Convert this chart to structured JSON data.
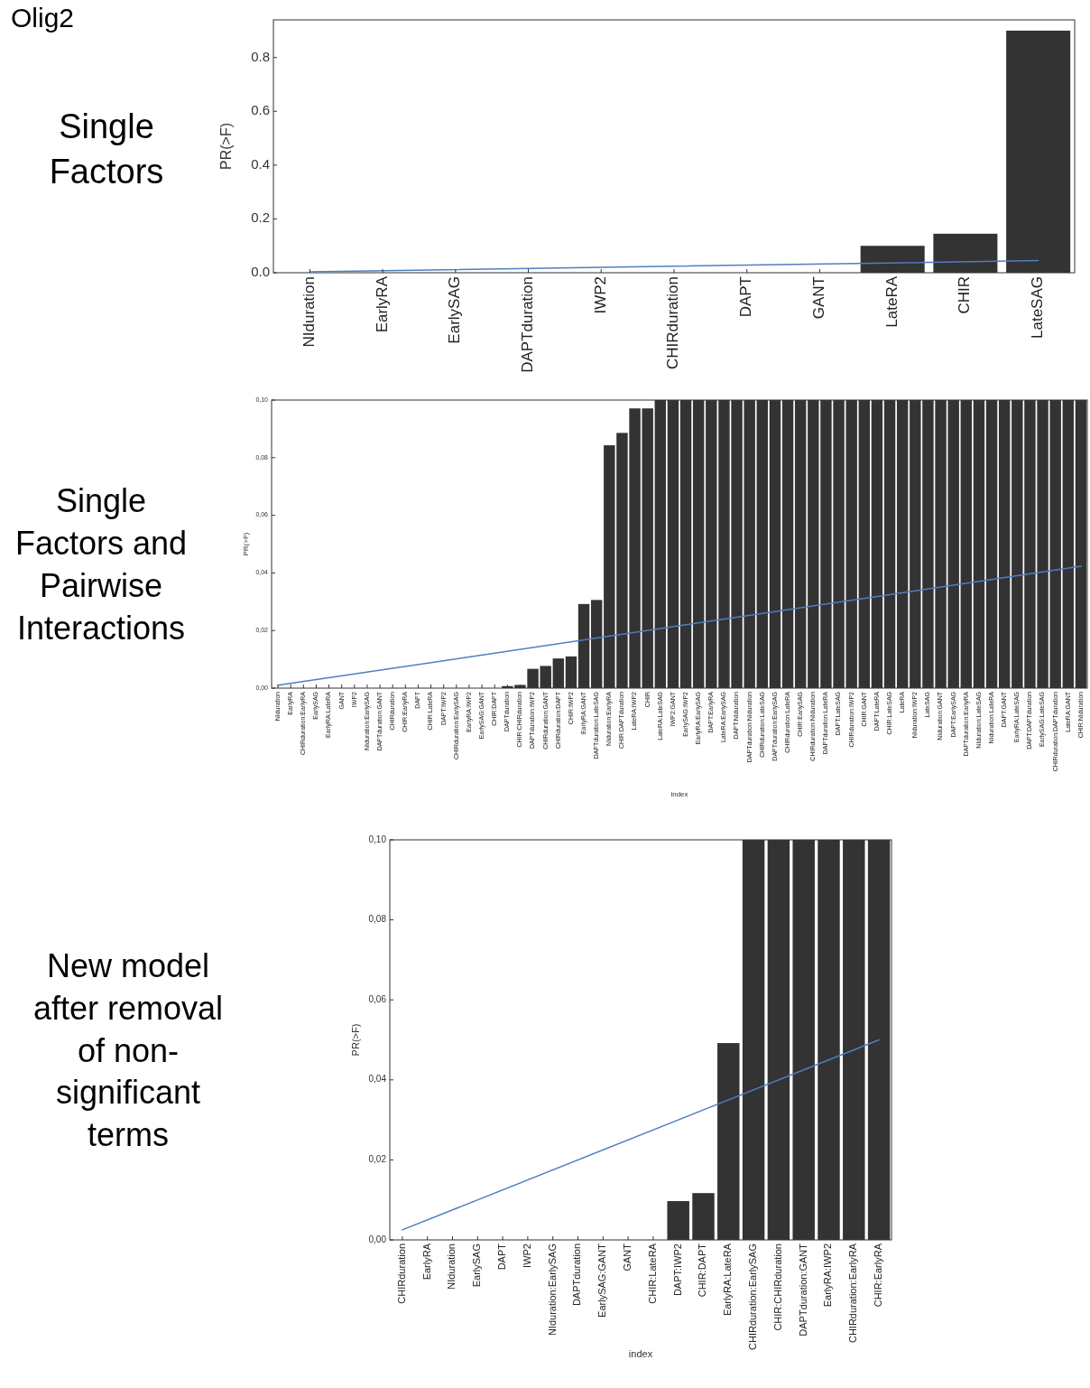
{
  "chart_data": [
    {
      "type": "bar",
      "title": "Single Factors",
      "ylabel": "PR(>F)",
      "annotations": [
        "Olig2"
      ],
      "categories": [
        "NIduration",
        "EarlyRA",
        "EarlySAG",
        "DAPTduration",
        "IWP2",
        "CHIRduration",
        "DAPT",
        "GANT",
        "LateRA",
        "CHIR",
        "LateSAG"
      ],
      "series": [
        {
          "color": "#333333",
          "values": [
            0,
            0,
            0,
            0,
            0,
            0,
            0,
            0,
            0.1,
            0.145,
            0.9
          ]
        },
        {
          "type": "line",
          "color": "#4f7fbf",
          "values": [
            0.003,
            null,
            null,
            null,
            null,
            null,
            null,
            null,
            null,
            null,
            0.045
          ]
        }
      ],
      "ylim": [
        0,
        0.94
      ],
      "yticks": [
        {
          "value": 0,
          "label": "0.0"
        },
        0.2,
        0.4,
        0.6,
        0.8
      ]
    },
    {
      "type": "bar",
      "title": "Single Factors and Pairwise Interactions",
      "ylabel": "PR(>F)",
      "xlabel": "index",
      "categories": [
        "NIduration",
        "EarlyRA",
        "CHIRduration:EarlyRA",
        "EarlySAG",
        "EarlyRA:LateRA",
        "GANT",
        "IWP2",
        "NIduration:EarlySAG",
        "DAPTduration:GANT",
        "CHIRduration",
        "CHIR:EarlyRA",
        "DAPT",
        "CHIR:LateRA",
        "DAPT:IWP2",
        "CHIRduration:EarlySAG",
        "EarlyRA:IWP2",
        "EarlySAG:GANT",
        "CHIR:DAPT",
        "DAPTduration",
        "CHIR:CHIRduration",
        "DAPTduration:IWP2",
        "CHIRduration:GANT",
        "CHIRduration:DAPT",
        "CHIR:IWP2",
        "EarlyRA:GANT",
        "DAPTduration:LateSAG",
        "NIduration:EarlyRA",
        "CHIR:DAPTduration",
        "LateRA:IWP2",
        "CHIR",
        "LateRA:LateSAG",
        "IWP2:GANT",
        "EarlySAG:IWP2",
        "EarlyRA:EarlySAG",
        "DAPT:EarlyRA",
        "LateRA:EarlySAG",
        "DAPT:NIduration",
        "DAPTduration:NIduration",
        "CHIRduration:LateSAG",
        "DAPTduration:EarlySAG",
        "CHIRduration:LateRA",
        "CHIR:EarlySAG",
        "CHIRduration:NIduration",
        "DAPTduration:LateRA",
        "DAPT:LateSAG",
        "CHIRduration:IWP2",
        "CHIR:GANT",
        "DAPT:LateRA",
        "CHIR:LateSAG",
        "LateRA",
        "NIduration:IWP2",
        "LateSAG",
        "NIduration:GANT",
        "DAPT:EarlySAG",
        "DAPTduration:EarlyRA",
        "NIduration:LateSAG",
        "NIduration:LateRA",
        "DAPT:GANT",
        "EarlyRA:LateSAG",
        "DAPT:DAPTduration",
        "EarlySAG:LateSAG",
        "CHIRduration:DAPTduration",
        "LateRA:GANT",
        "CHIR:NIduration"
      ],
      "series": [
        {
          "color": "#333333",
          "values": [
            0,
            0,
            0,
            0,
            0,
            0,
            0,
            0,
            0,
            0,
            0,
            0,
            0,
            0,
            0,
            0,
            0,
            0,
            0.0007,
            0.0011,
            0.0067,
            0.0077,
            0.0103,
            0.011,
            0.0292,
            0.0306,
            0.0843,
            0.0886,
            0.0971,
            0.0971,
            0.1,
            0.1,
            0.1,
            0.1,
            0.1,
            0.1,
            0.1,
            0.1,
            0.1,
            0.1,
            0.1,
            0.1,
            0.1,
            0.1,
            0.1,
            0.1,
            0.1,
            0.1,
            0.1,
            0.1,
            0.1,
            0.1,
            0.1,
            0.1,
            0.1,
            0.1,
            0.1,
            0.1,
            0.1,
            0.1,
            0.1,
            0.1,
            0.1,
            0.1
          ]
        },
        {
          "type": "line",
          "color": "#4f7fbf",
          "values": [
            0.001,
            null,
            null,
            null,
            null,
            null,
            null,
            null,
            null,
            null,
            null,
            null,
            null,
            null,
            null,
            null,
            null,
            null,
            null,
            null,
            null,
            null,
            null,
            null,
            null,
            null,
            null,
            null,
            null,
            null,
            null,
            null,
            null,
            null,
            null,
            null,
            null,
            null,
            null,
            null,
            null,
            null,
            null,
            null,
            null,
            null,
            null,
            null,
            null,
            null,
            null,
            null,
            null,
            null,
            null,
            null,
            null,
            null,
            null,
            null,
            null,
            null,
            null,
            0.0423
          ]
        }
      ],
      "ylim": [
        0,
        0.1
      ],
      "yticks": [
        {
          "value": 0,
          "label": "0,00"
        },
        {
          "value": 0.02,
          "label": "0,02"
        },
        {
          "value": 0.04,
          "label": "0,04"
        },
        {
          "value": 0.06,
          "label": "0,06"
        },
        {
          "value": 0.08,
          "label": "0,08"
        },
        {
          "value": 0.1,
          "label": "0,10"
        }
      ]
    },
    {
      "type": "bar",
      "title": "New model after removal of non-significant terms",
      "ylabel": "PR(>F)",
      "xlabel": "index",
      "categories": [
        "CHIRduration",
        "EarlyRA",
        "NIduration",
        "EarlySAG",
        "DAPT",
        "IWP2",
        "NIduration:EarlySAG",
        "DAPTduration",
        "EarlySAG:GANT",
        "GANT",
        "CHIR:LateRA",
        "DAPT:IWP2",
        "CHIR:DAPT",
        "EarlyRA:LateRA",
        "CHIRduration:EarlySAG",
        "CHIR:CHIRduration",
        "DAPTduration:GANT",
        "EarlyRA:IWP2",
        "CHIRduration:EarlyRA",
        "CHIR:EarlyRA"
      ],
      "series": [
        {
          "color": "#333333",
          "values": [
            0,
            0,
            0,
            0,
            0,
            0,
            0,
            0,
            0,
            0,
            0,
            0.0097,
            0.0117,
            0.0492,
            0.1,
            0.1,
            0.1,
            0.1,
            0.1,
            0.1
          ]
        },
        {
          "type": "line",
          "color": "#4f7fbf",
          "values": [
            0.0025,
            null,
            null,
            null,
            null,
            null,
            null,
            null,
            null,
            null,
            null,
            null,
            null,
            null,
            null,
            null,
            null,
            null,
            null,
            0.05
          ]
        }
      ],
      "ylim": [
        0,
        0.1
      ],
      "yticks": [
        {
          "value": 0,
          "label": "0,00"
        },
        {
          "value": 0.02,
          "label": "0,02"
        },
        {
          "value": 0.04,
          "label": "0,04"
        },
        {
          "value": 0.06,
          "label": "0,06"
        },
        {
          "value": 0.08,
          "label": "0,08"
        },
        {
          "value": 0.1,
          "label": "0,10"
        }
      ]
    }
  ]
}
